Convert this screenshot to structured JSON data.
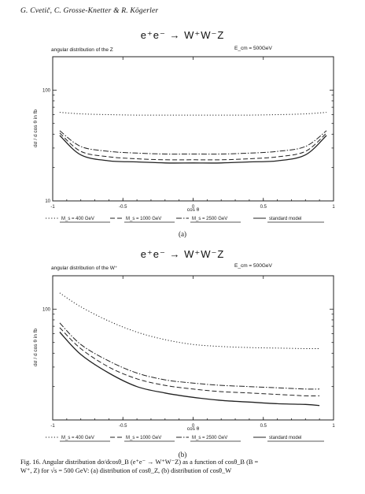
{
  "header": {
    "authors": "G. Cvetič, C. Grosse-Knetter & R. Kögerler"
  },
  "panels": [
    {
      "process": "e⁺e⁻ → W⁺W⁻Z",
      "subtitle": "angular distribution of the Z",
      "energy": "E_cm = 500GeV",
      "label": "(a)"
    },
    {
      "process": "e⁺e⁻ → W⁺W⁻Z",
      "subtitle": "angular distribution of the W⁺",
      "energy": "E_cm = 500GeV",
      "label": "(b)"
    }
  ],
  "caption": {
    "line1": "Fig. 16. Angular distribution dσ/dcosθ_B (e⁺e⁻ → W⁺W⁻Z) as a function of cosθ_B (B =",
    "line2": "W⁺, Z) for √s = 500 GeV: (a) distribution of cosθ_Z, (b) distribution of cosθ_W"
  },
  "chart_data": [
    {
      "type": "line",
      "xlabel": "cos θ",
      "ylabel": "dσ / d cos θ   in fb",
      "xlim": [
        -1,
        1
      ],
      "ylim": [
        10,
        200
      ],
      "yscale": "log",
      "xticks": [
        -1,
        -0.5,
        0,
        0.5,
        1
      ],
      "xtick_labels": [
        "-1",
        "-0.5",
        "0",
        "0.5",
        "1"
      ],
      "ytick_labels": [
        {
          "value": 10,
          "label": "10"
        },
        {
          "value": 100,
          "label": "100"
        }
      ],
      "grid": false,
      "x": [
        -0.95,
        -0.8,
        -0.6,
        -0.4,
        -0.2,
        0,
        0.2,
        0.4,
        0.6,
        0.8,
        0.95
      ],
      "series": [
        {
          "name": "M_s = 1000 GeV",
          "style": "dashed",
          "color": "#222222",
          "values": [
            41,
            28,
            25,
            24,
            23.5,
            23.5,
            23.5,
            24,
            25,
            28,
            41
          ]
        },
        {
          "name": "M_s = 2500 GeV",
          "style": "dash-dot",
          "color": "#222222",
          "values": [
            43,
            31,
            28,
            27,
            26.5,
            26.5,
            26.5,
            27,
            28,
            31,
            43
          ]
        },
        {
          "name": "standard model",
          "style": "solid",
          "color": "#222222",
          "values": [
            39,
            26,
            23,
            22.5,
            22,
            22,
            22,
            22.5,
            23,
            26,
            39
          ]
        },
        {
          "name": "M_s = 400 GeV",
          "style": "dotted",
          "color": "#222222",
          "values": [
            63,
            61,
            60,
            59.5,
            59.5,
            59.5,
            59.5,
            59.5,
            60,
            61,
            63
          ]
        }
      ],
      "legend": {
        "placement": "bottom",
        "entries": [
          {
            "name": "M_s = 400 GeV",
            "style": "dotted"
          },
          {
            "name": "M_s = 1000 GeV",
            "style": "dashed"
          },
          {
            "name": "M_s = 2500 GeV",
            "style": "dash-dot"
          },
          {
            "name": "standard model",
            "style": "solid"
          }
        ]
      }
    },
    {
      "type": "line",
      "xlabel": "cos θ",
      "ylabel": "dσ / d cos θ   in fb",
      "xlim": [
        -1,
        1
      ],
      "ylim": [
        10,
        200
      ],
      "yscale": "log",
      "xticks": [
        -1,
        -0.5,
        0,
        0.5,
        1
      ],
      "xtick_labels": [
        "-1",
        "-0.5",
        "0",
        "0.5",
        "1"
      ],
      "ytick_labels": [
        {
          "value": 100,
          "label": "100"
        }
      ],
      "grid": false,
      "x": [
        -0.95,
        -0.8,
        -0.6,
        -0.4,
        -0.2,
        0,
        0.2,
        0.4,
        0.6,
        0.8,
        0.9
      ],
      "series": [
        {
          "name": "M_s = 400 GeV",
          "style": "dotted",
          "color": "#222222",
          "values": [
            140,
            105,
            78,
            62,
            53,
            48,
            46,
            45,
            44.5,
            44,
            44
          ]
        },
        {
          "name": "M_s = 1000 GeV",
          "style": "dashed",
          "color": "#222222",
          "values": [
            68,
            44,
            30,
            23.5,
            20.5,
            19,
            18,
            17.5,
            17,
            16.5,
            16.5
          ]
        },
        {
          "name": "M_s = 2500 GeV",
          "style": "dash-dot",
          "color": "#222222",
          "values": [
            75,
            48,
            34,
            26.5,
            23,
            21.5,
            20.5,
            20,
            19.5,
            19,
            19
          ]
        },
        {
          "name": "standard model",
          "style": "solid",
          "color": "#222222",
          "values": [
            62,
            39,
            26.5,
            20,
            17.5,
            16,
            15,
            14.5,
            14,
            13.8,
            13.5
          ]
        }
      ],
      "legend": {
        "placement": "bottom",
        "entries": [
          {
            "name": "M_s = 400 GeV",
            "style": "dotted"
          },
          {
            "name": "M_s = 1000 GeV",
            "style": "dashed"
          },
          {
            "name": "M_s = 2500 GeV",
            "style": "dash-dot"
          },
          {
            "name": "standard model",
            "style": "solid"
          }
        ]
      }
    }
  ]
}
